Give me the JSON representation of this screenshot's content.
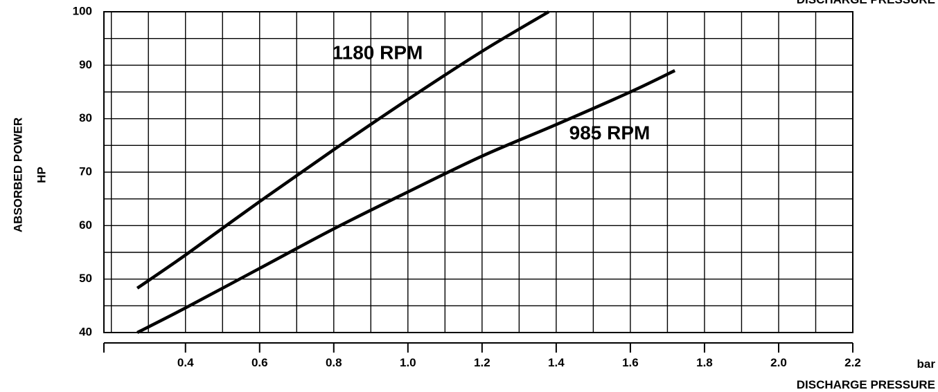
{
  "chart_data": {
    "type": "line",
    "title": "",
    "xlabel": "DISCHARGE PRESSURE",
    "x_unit": "bar",
    "top_label": "DISCHARGE PRESSURE",
    "ylabel_line1": "ABSORBED POWER",
    "ylabel_line2": "HP",
    "xlim": [
      0.18,
      2.2
    ],
    "ylim": [
      40,
      100
    ],
    "grid": true,
    "xticks": [
      0.4,
      0.6,
      0.8,
      1.0,
      1.2,
      1.4,
      1.6,
      1.8,
      2.0,
      2.2
    ],
    "xtick_labels": [
      "0.4",
      "0.6",
      "0.8",
      "1.0",
      "1.2",
      "1.4",
      "1.6",
      "1.8",
      "2.0",
      "2.2"
    ],
    "yticks": [
      40,
      50,
      60,
      70,
      80,
      90,
      100
    ],
    "ytick_labels": [
      "40",
      "50",
      "60",
      "70",
      "80",
      "90",
      "100"
    ],
    "series": [
      {
        "name": "1180 RPM",
        "x": [
          0.27,
          0.4,
          0.6,
          0.8,
          1.0,
          1.2,
          1.38
        ],
        "y": [
          48.3,
          54.5,
          64.5,
          74.2,
          83.6,
          92.6,
          100
        ]
      },
      {
        "name": "985 RPM",
        "x": [
          0.27,
          0.4,
          0.6,
          0.8,
          1.0,
          1.2,
          1.4,
          1.6,
          1.72
        ],
        "y": [
          40,
          44.6,
          52.0,
          59.4,
          66.3,
          73.0,
          78.9,
          85.0,
          89.0
        ]
      }
    ]
  }
}
